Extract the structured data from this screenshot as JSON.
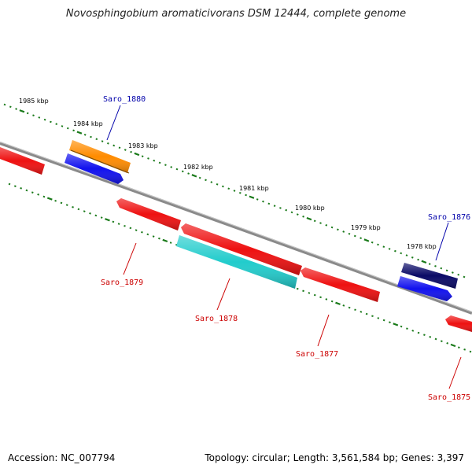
{
  "title": "Novosphingobium aromaticivorans DSM 12444, complete genome",
  "footer": {
    "accession": "Accession: NC_007794",
    "summary": "Topology: circular; Length: 3,561,584 bp; Genes: 3,397"
  },
  "colors": {
    "backbone": "#8a8a8a",
    "tick": "#1a7a1a",
    "plus_label": "#0000aa",
    "minus_label": "#cc0000"
  },
  "scale_labels": [
    "1985 kbp",
    "1984 kbp",
    "1983 kbp",
    "1982 kbp",
    "1981 kbp",
    "1980 kbp",
    "1979 kbp",
    "1978 kbp"
  ],
  "genes": [
    {
      "name": "",
      "strand": "minus",
      "color": "#ee1111"
    },
    {
      "name": "",
      "strand": "plus",
      "color": "#ff8c00"
    },
    {
      "name": "",
      "strand": "plus",
      "color": "#1111ee"
    },
    {
      "name": "",
      "strand": "minus",
      "color": "#ee1111"
    },
    {
      "name": "",
      "strand": "minus",
      "color": "#ee1111"
    },
    {
      "name": "",
      "strand": "minus",
      "color": "#22cccc"
    },
    {
      "name": "",
      "strand": "minus",
      "color": "#ee1111"
    },
    {
      "name": "",
      "strand": "plus",
      "color": "#0a0a66"
    },
    {
      "name": "",
      "strand": "plus",
      "color": "#1111ee"
    },
    {
      "name": "",
      "strand": "minus",
      "color": "#ee1111"
    }
  ],
  "gene_labels": [
    {
      "text": "Saro_1880",
      "strand": "plus"
    },
    {
      "text": "Saro_1879",
      "strand": "minus"
    },
    {
      "text": "Saro_1878",
      "strand": "minus"
    },
    {
      "text": "Saro_1877",
      "strand": "minus"
    },
    {
      "text": "Saro_1876",
      "strand": "plus"
    },
    {
      "text": "Saro_1875",
      "strand": "minus"
    }
  ]
}
